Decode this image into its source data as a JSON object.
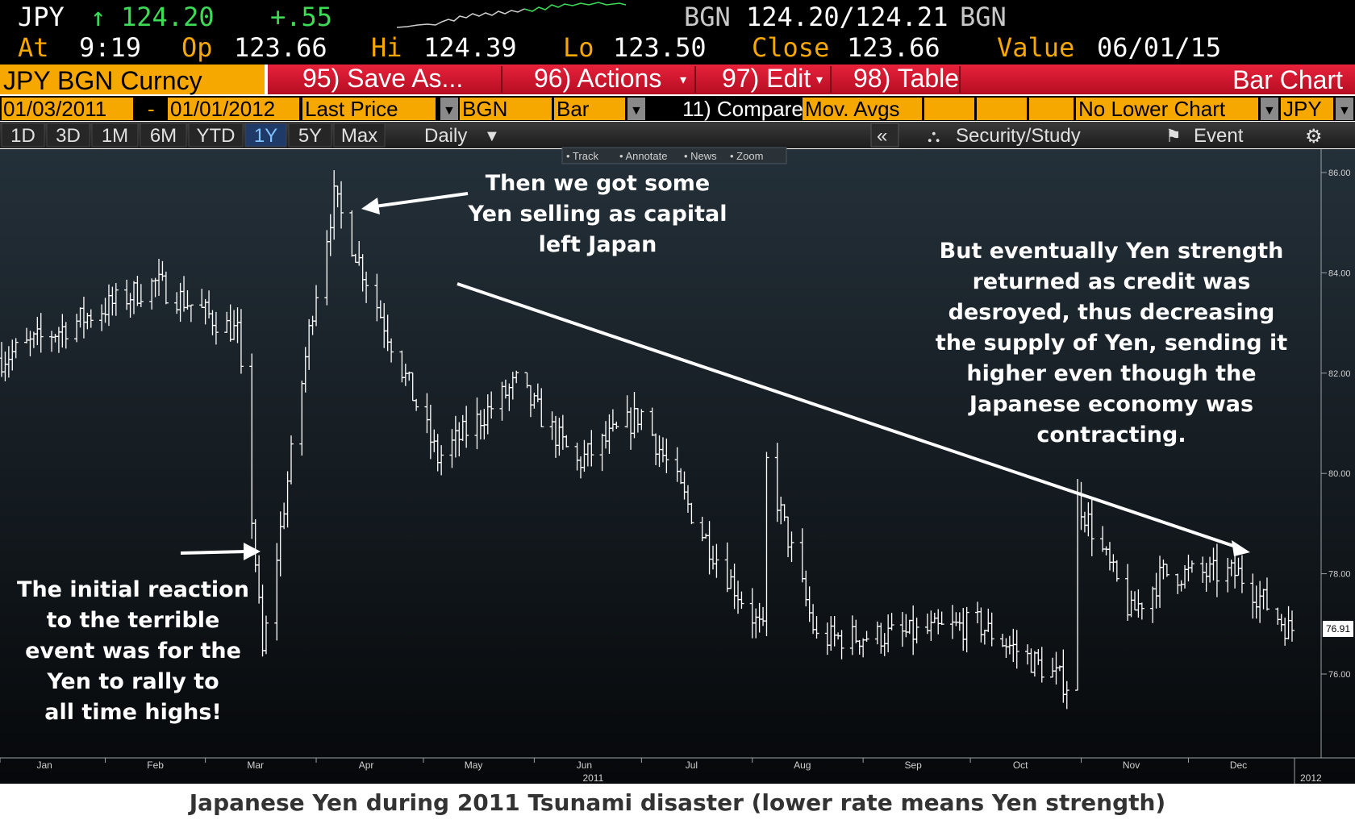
{
  "header": {
    "ticker": "JPY",
    "arrow": "↑",
    "price": "124.20",
    "change": "+.55",
    "source": "BGN",
    "bid_ask": "124.20/124.21",
    "source2": "BGN",
    "at_label": "At",
    "time": "9:19",
    "open_label": "Op",
    "open": "123.66",
    "high_label": "Hi",
    "high": "124.39",
    "low_label": "Lo",
    "low": "123.50",
    "close_label": "Close",
    "close": "123.66",
    "value_label": "Value",
    "value_date": "06/01/15"
  },
  "toolbar": {
    "security": "JPY BGN Curncy",
    "save_as": "95) Save As...",
    "actions": "96) Actions",
    "edit": "97) Edit",
    "table": "98) Table",
    "chart_type_title": "Bar Chart",
    "date_from": "01/03/2011",
    "date_sep": "-",
    "date_to": "01/01/2012",
    "field": "Last Price",
    "pricing_source": "BGN",
    "bar_type": "Bar",
    "compare_label": "11) Compare",
    "compare_value": "Mov. Avgs",
    "lower_chart": "No Lower Chart",
    "currency": "JPY",
    "periods": [
      "1D",
      "3D",
      "1M",
      "6M",
      "YTD",
      "1Y",
      "5Y",
      "Max"
    ],
    "active_period": "1Y",
    "frequency": "Daily",
    "collapse": "«",
    "security_study": "Security/Study",
    "event": "Event"
  },
  "chart_tools": [
    "Track",
    "Annotate",
    "News",
    "Zoom"
  ],
  "annotations": {
    "initial": [
      "The initial reaction",
      "to the terrible",
      "event was for the",
      "Yen to rally to",
      "all time highs!"
    ],
    "selling": [
      "Then we got some",
      "Yen selling as capital",
      "left Japan"
    ],
    "strength": [
      "But eventually Yen strength",
      "returned as credit was",
      "desroyed, thus decreasing",
      "the supply of Yen, sending it",
      "higher even though the",
      "Japanese economy was",
      "contracting."
    ]
  },
  "caption": "Japanese Yen during 2011 Tsunami disaster (lower rate means Yen strength)",
  "colors": {
    "background_top": "#243039",
    "background_bottom": "#06080a",
    "header_orange": "#f7a800",
    "header_red": "#d0112b",
    "accent_green": "#3ddc57",
    "bars": "#ffffff"
  },
  "chart_data": {
    "type": "bar",
    "subtype": "ohlc",
    "title": "",
    "xlabel": "2011",
    "ylabel": "",
    "ylim": [
      75.0,
      86.4
    ],
    "yticks": [
      "86.00",
      "84.00",
      "82.00",
      "80.00",
      "78.00",
      "76.00"
    ],
    "x_month_labels": [
      "Jan",
      "Feb",
      "Mar",
      "Apr",
      "May",
      "Jun",
      "Jul",
      "Aug",
      "Sep",
      "Oct",
      "Nov",
      "Dec"
    ],
    "x_end_label": "2012",
    "last_value_label": "76.91",
    "grid": false,
    "key_points": [
      {
        "x": "2011-01-03",
        "y": 82.3
      },
      {
        "x": "2011-02-15",
        "y": 83.8
      },
      {
        "x": "2011-03-10",
        "y": 82.8
      },
      {
        "x": "2011-03-17",
        "y": 76.4
      },
      {
        "x": "2011-03-31",
        "y": 83.3
      },
      {
        "x": "2011-04-06",
        "y": 85.5
      },
      {
        "x": "2011-05-05",
        "y": 80.3
      },
      {
        "x": "2011-05-27",
        "y": 81.8
      },
      {
        "x": "2011-06-13",
        "y": 80.2
      },
      {
        "x": "2011-07-01",
        "y": 81.2
      },
      {
        "x": "2011-07-18",
        "y": 78.8
      },
      {
        "x": "2011-08-04",
        "y": 76.8
      },
      {
        "x": "2011-08-05",
        "y": 80.2
      },
      {
        "x": "2011-08-19",
        "y": 76.7
      },
      {
        "x": "2011-09-15",
        "y": 76.8
      },
      {
        "x": "2011-10-03",
        "y": 77.0
      },
      {
        "x": "2011-10-28",
        "y": 75.8
      },
      {
        "x": "2011-10-31",
        "y": 79.5
      },
      {
        "x": "2011-11-15",
        "y": 77.2
      },
      {
        "x": "2011-11-24",
        "y": 78.0
      },
      {
        "x": "2011-12-15",
        "y": 78.0
      },
      {
        "x": "2011-12-29",
        "y": 76.9
      }
    ]
  }
}
